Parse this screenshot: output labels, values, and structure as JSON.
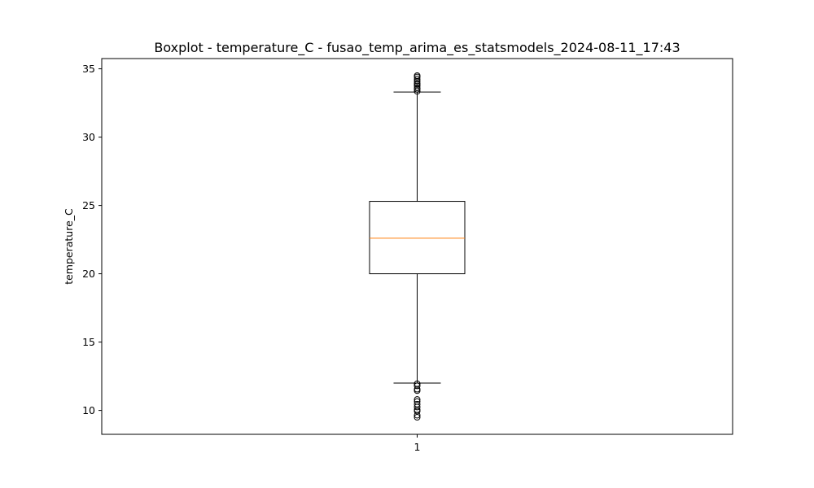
{
  "chart_data": {
    "type": "boxplot",
    "title": "Boxplot - temperature_C - fusao_temp_arima_es_statsmodels_2024-08-11_17:43",
    "xlabel": "",
    "ylabel": "temperature_C",
    "categories": [
      "1"
    ],
    "ylim": [
      8.25,
      35.75
    ],
    "yticks": [
      10,
      15,
      20,
      25,
      30,
      35
    ],
    "grid": false,
    "boxes": [
      {
        "category": "1",
        "whisker_low": 12.0,
        "q1": 20.0,
        "median": 22.6,
        "q3": 25.3,
        "whisker_high": 33.3,
        "outliers": [
          33.35,
          33.5,
          33.6,
          33.75,
          33.85,
          33.95,
          34.1,
          34.25,
          34.4,
          34.5,
          11.95,
          11.8,
          11.55,
          11.45,
          10.8,
          10.65,
          10.45,
          10.25,
          10.05,
          9.95,
          9.65,
          9.5
        ]
      }
    ],
    "colors": {
      "box": "#000000",
      "median": "#ff7f0e",
      "outlier": "#000000"
    }
  }
}
